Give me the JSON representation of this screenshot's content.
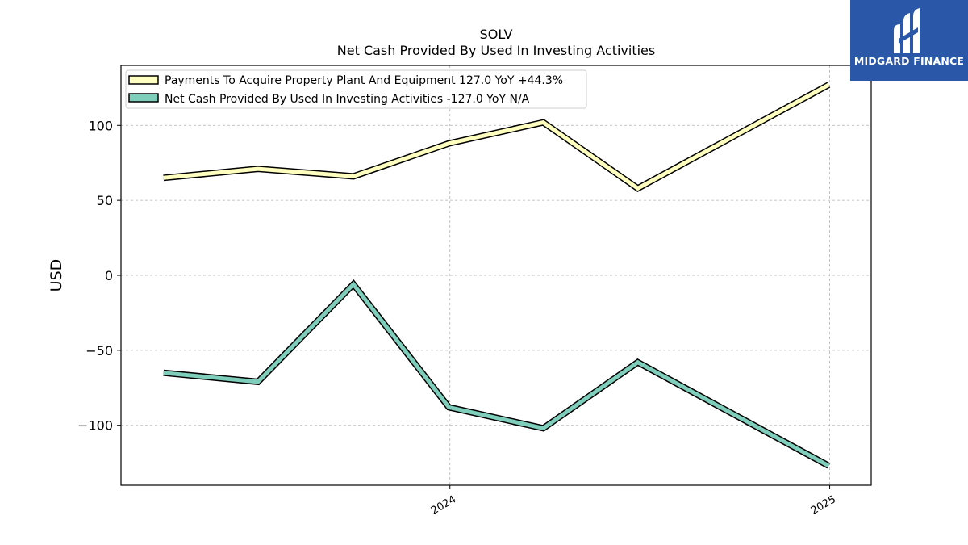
{
  "chart_data": {
    "type": "line",
    "title": "SOLV",
    "subtitle": "Net Cash Provided By Used In Investing Activities",
    "ylabel": "USD",
    "xlabel": "",
    "ylim": [
      -140,
      140
    ],
    "yticks": [
      100,
      50,
      0,
      -50,
      -100
    ],
    "ytick_labels": [
      "100",
      "50",
      "0",
      "−50",
      "−100"
    ],
    "x": [
      "2023-03-31",
      "2023-06-30",
      "2023-09-30",
      "2023-12-31",
      "2024-03-31",
      "2024-06-30",
      "2024-12-31"
    ],
    "xlim": [
      "2023-02-18",
      "2025-02-10"
    ],
    "xticks": [
      {
        "date": "2024-01-01",
        "label": "2024"
      },
      {
        "date": "2025-01-01",
        "label": "2025"
      }
    ],
    "grid": true,
    "legend_position": "top-left",
    "series": [
      {
        "name": "Payments To Acquire Property Plant And Equipment",
        "legend_label": "Payments To Acquire Property Plant And Equipment  127.0 YoY +44.3%",
        "color": "#ffffbf",
        "values": [
          65,
          71,
          66,
          88,
          102,
          58,
          127
        ]
      },
      {
        "name": "Net Cash Provided By Used In Investing Activities",
        "legend_label": "Net Cash Provided By Used In Investing Activities  -127.0 YoY N/A",
        "color": "#7fcdbb",
        "values": [
          -65,
          -71,
          -6,
          -88,
          -102,
          -58,
          -127
        ]
      }
    ]
  },
  "brand": {
    "name": "MIDGARD FINANCE",
    "color": "#2a57a8"
  }
}
